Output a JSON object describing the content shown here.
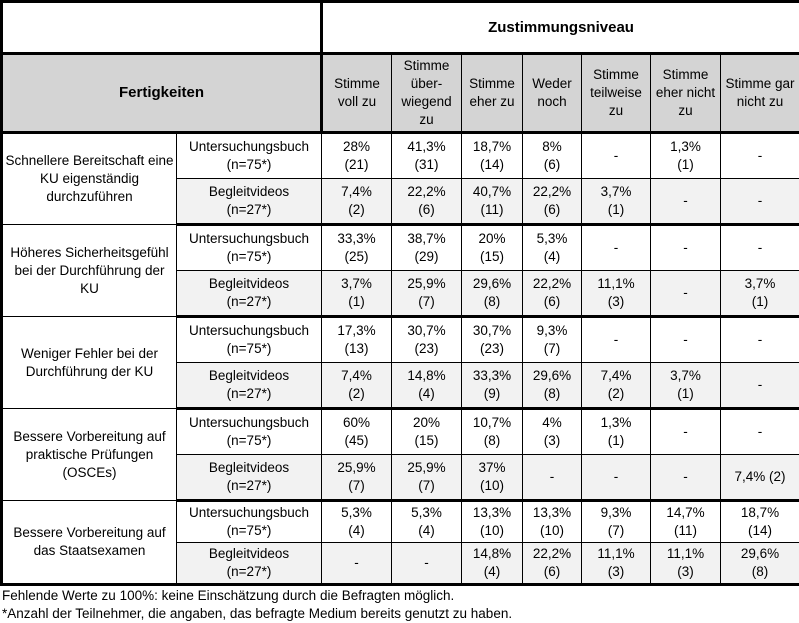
{
  "table": {
    "group_header": "Zustimmungsniveau",
    "row_header": "Fertigkeiten",
    "columns": [
      "Stimme voll zu",
      "Stimme über-wiegend zu",
      "Stimme eher zu",
      "Weder noch",
      "Stimme teilweise zu",
      "Stimme eher nicht zu",
      "Stimme gar nicht zu"
    ],
    "blocks": [
      {
        "skill": "Schnellere Bereitschaft eine KU eigenständig durchzuführen",
        "rows": [
          {
            "medium": "Untersuchungsbuch\n(n=75*)",
            "values": [
              "28%\n(21)",
              "41,3%\n(31)",
              "18,7%\n(14)",
              "8%\n(6)",
              "-",
              "1,3%\n(1)",
              "-"
            ]
          },
          {
            "medium": "Begleitvideos\n(n=27*)",
            "values": [
              "7,4%\n(2)",
              "22,2%\n(6)",
              "40,7%\n(11)",
              "22,2%\n(6)",
              "3,7%\n(1)",
              "-",
              "-"
            ]
          }
        ]
      },
      {
        "skill": "Höheres Sicherheitsgefühl bei der Durchführung der KU",
        "rows": [
          {
            "medium": "Untersuchungsbuch\n(n=75*)",
            "values": [
              "33,3%\n(25)",
              "38,7%\n(29)",
              "20%\n(15)",
              "5,3%\n(4)",
              "-",
              "-",
              "-"
            ]
          },
          {
            "medium": "Begleitvideos\n(n=27*)",
            "values": [
              "3,7%\n(1)",
              "25,9%\n(7)",
              "29,6%\n(8)",
              "22,2%\n(6)",
              "11,1%\n(3)",
              "-",
              "3,7%\n(1)"
            ]
          }
        ]
      },
      {
        "skill": "Weniger Fehler bei der Durchführung der KU",
        "rows": [
          {
            "medium": "Untersuchungsbuch\n(n=75*)",
            "values": [
              "17,3%\n(13)",
              "30,7%\n(23)",
              "30,7%\n(23)",
              "9,3%\n(7)",
              "-",
              "-",
              "-"
            ]
          },
          {
            "medium": "Begleitvideos\n(n=27*)",
            "values": [
              "7,4%\n(2)",
              "14,8%\n(4)",
              "33,3%\n(9)",
              "29,6%\n(8)",
              "7,4%\n(2)",
              "3,7%\n(1)",
              "-"
            ]
          }
        ]
      },
      {
        "skill": "Bessere Vorbereitung auf praktische Prüfungen (OSCEs)",
        "rows": [
          {
            "medium": "Untersuchungsbuch\n(n=75*)",
            "values": [
              "60%\n(45)",
              "20%\n(15)",
              "10,7%\n(8)",
              "4%\n(3)",
              "1,3%\n(1)",
              "-",
              "-"
            ]
          },
          {
            "medium": "Begleitvideos\n(n=27*)",
            "values": [
              "25,9%\n(7)",
              "25,9%\n(7)",
              "37%\n(10)",
              "-",
              "-",
              "-",
              "7,4% (2)"
            ]
          }
        ]
      },
      {
        "skill": "Bessere Vorbereitung auf das Staatsexamen",
        "rows": [
          {
            "medium": "Untersuchungsbuch\n(n=75*)",
            "values": [
              "5,3%\n(4)",
              "5,3%\n(4)",
              "13,3%\n(10)",
              "13,3%\n(10)",
              "9,3%\n(7)",
              "14,7%\n(11)",
              "18,7%\n(14)"
            ]
          },
          {
            "medium": "Begleitvideos\n(n=27*)",
            "values": [
              "-",
              "-",
              "14,8%\n(4)",
              "22,2%\n(6)",
              "11,1%\n(3)",
              "11,1%\n(3)",
              "29,6%\n(8)"
            ]
          }
        ]
      }
    ],
    "footnotes": [
      "Fehlende Werte zu 100%: keine Einschätzung durch die Befragten möglich.",
      "*Anzahl der Teilnehmer, die angaben, das befragte Medium bereits genutzt zu haben."
    ]
  },
  "colors": {
    "header_bg": "#d4d4d4",
    "shaded_row_bg": "#f2f2f2",
    "border": "#000000"
  }
}
